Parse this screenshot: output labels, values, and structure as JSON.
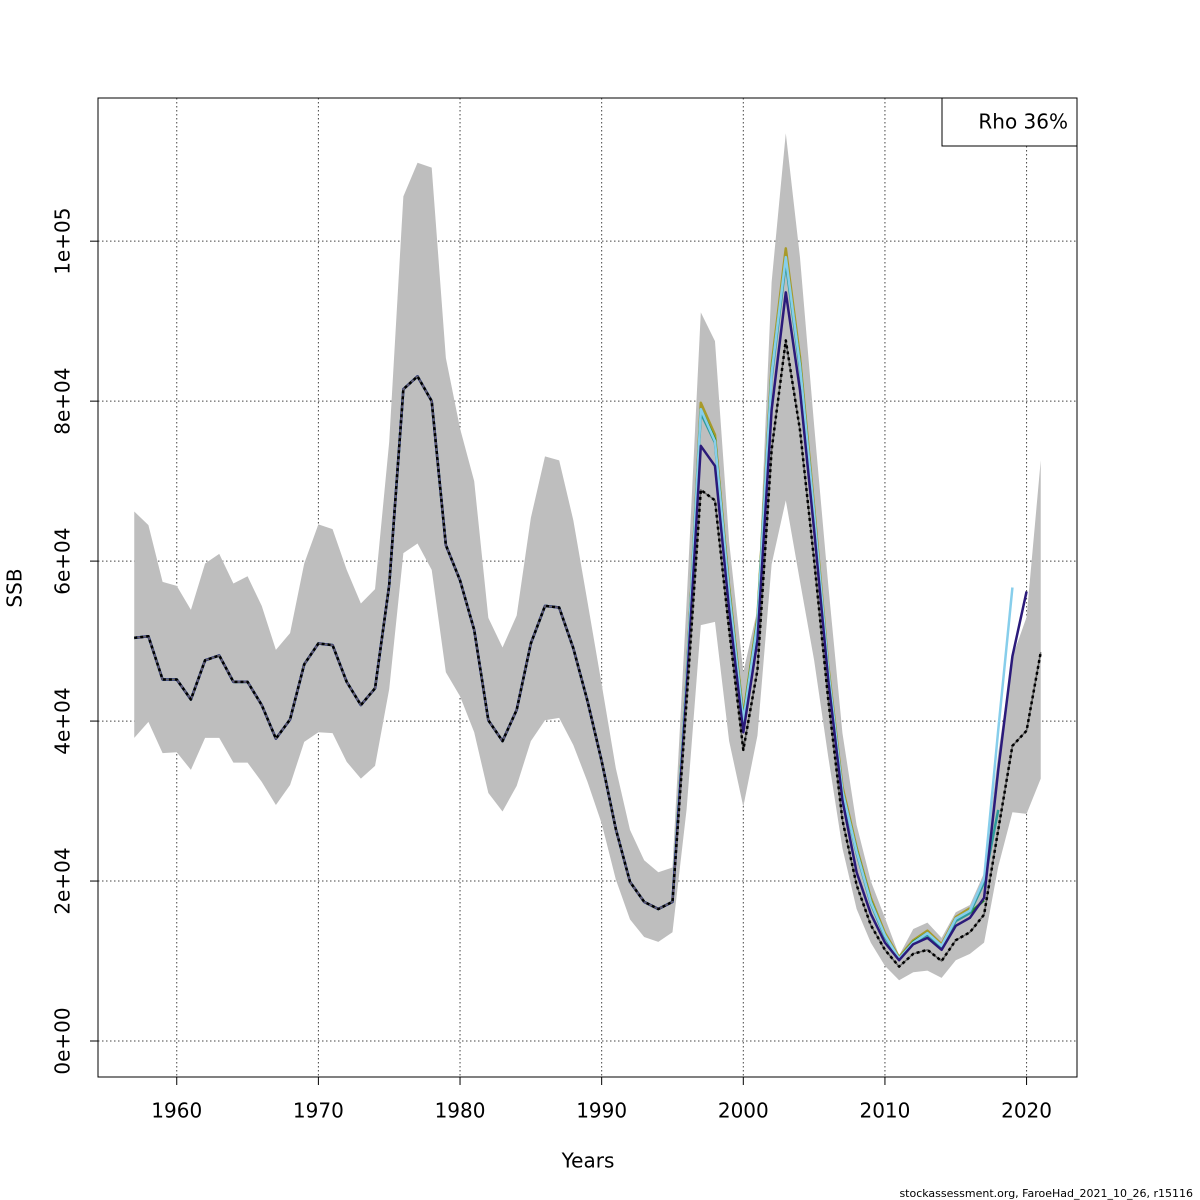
{
  "chart_data": {
    "type": "line",
    "xlabel": "Years",
    "ylabel": "SSB",
    "annotation": "Rho 36%",
    "footer": "stockassessment.org, FaroeHad_2021_10_26, r15116",
    "grid": true,
    "legend_position": "top-right",
    "xlim": [
      1954.44,
      2023.56
    ],
    "xticks": [
      1960,
      1970,
      1980,
      1990,
      2000,
      2010,
      2020
    ],
    "ylim": [
      -4500,
      117900
    ],
    "yticks": [
      {
        "value": 0,
        "label": "0e+00"
      },
      {
        "value": 20000,
        "label": "2e+04"
      },
      {
        "value": 40000,
        "label": "4e+04"
      },
      {
        "value": 60000,
        "label": "6e+04"
      },
      {
        "value": 80000,
        "label": "8e+04"
      },
      {
        "value": 100000,
        "label": "1e+05"
      }
    ],
    "x": [
      1957,
      1958,
      1959,
      1960,
      1961,
      1962,
      1963,
      1964,
      1965,
      1966,
      1967,
      1968,
      1969,
      1970,
      1971,
      1972,
      1973,
      1974,
      1975,
      1976,
      1977,
      1978,
      1979,
      1980,
      1981,
      1982,
      1983,
      1984,
      1985,
      1986,
      1987,
      1988,
      1989,
      1990,
      1991,
      1992,
      1993,
      1994,
      1995,
      1996,
      1997,
      1998,
      1999,
      2000,
      2001,
      2002,
      2003,
      2004,
      2005,
      2006,
      2007,
      2008,
      2009,
      2010,
      2011,
      2012,
      2013,
      2014,
      2015,
      2016,
      2017,
      2018,
      2019,
      2020,
      2021
    ],
    "band": {
      "color": "#bebebe",
      "upper": [
        66200,
        64500,
        57400,
        56900,
        53900,
        59700,
        60900,
        57200,
        58100,
        54400,
        48900,
        51000,
        59700,
        64600,
        64000,
        58900,
        54700,
        56500,
        74900,
        105600,
        109800,
        109200,
        85400,
        76600,
        70000,
        52900,
        49200,
        53200,
        65400,
        73100,
        72600,
        65100,
        54900,
        44600,
        34100,
        26400,
        22600,
        21100,
        21700,
        55000,
        91100,
        87500,
        62400,
        46100,
        54000,
        94900,
        113500,
        98000,
        77000,
        57000,
        38500,
        27000,
        20000,
        15400,
        10700,
        14000,
        14800,
        12900,
        16100,
        17000,
        21000,
        36000,
        48000,
        53000,
        72600
      ],
      "lower": [
        37900,
        39900,
        36000,
        36100,
        33900,
        37900,
        37900,
        34800,
        34800,
        32400,
        29500,
        32000,
        37400,
        38600,
        38500,
        34900,
        32800,
        34400,
        44000,
        61000,
        62200,
        58900,
        46100,
        43100,
        38600,
        31000,
        28700,
        31900,
        37500,
        40100,
        40400,
        37000,
        32400,
        27200,
        20200,
        15200,
        13000,
        12400,
        13600,
        29000,
        52000,
        52400,
        37500,
        29300,
        38200,
        59600,
        67600,
        57500,
        47600,
        35500,
        24100,
        16500,
        12300,
        9400,
        7600,
        8600,
        8800,
        7900,
        10100,
        10900,
        12300,
        21800,
        28600,
        28400,
        32800
      ]
    },
    "series": [
      {
        "color": "#a89a2a",
        "dash": false,
        "values": [
          50400,
          50600,
          45200,
          45200,
          42700,
          47600,
          48200,
          44900,
          44900,
          42000,
          37800,
          40200,
          47100,
          49700,
          49500,
          44900,
          42000,
          44100,
          57000,
          81500,
          83100,
          80000,
          62000,
          57600,
          51400,
          40100,
          37500,
          41400,
          49700,
          54400,
          54200,
          49100,
          42500,
          35000,
          26500,
          19900,
          17400,
          16500,
          17400,
          45500,
          79800,
          75800,
          56800,
          40700,
          53000,
          84500,
          99100,
          85500,
          66800,
          46900,
          31800,
          24200,
          17900,
          13500,
          10500,
          12600,
          13800,
          12100,
          15500,
          16600,
          null,
          null,
          null,
          null,
          null
        ]
      },
      {
        "color": "#1f8a1f",
        "dash": false,
        "values": [
          50400,
          50600,
          45200,
          45200,
          42700,
          47600,
          48200,
          44900,
          44900,
          42000,
          37800,
          40200,
          47100,
          49700,
          49500,
          44900,
          42000,
          44100,
          57000,
          81500,
          83100,
          80000,
          62000,
          57600,
          51400,
          40100,
          37500,
          41400,
          49700,
          54400,
          54200,
          49100,
          42500,
          35000,
          26500,
          19900,
          17400,
          16500,
          17400,
          45200,
          79000,
          75200,
          56200,
          40200,
          52500,
          83700,
          97500,
          84700,
          66000,
          46300,
          31200,
          23800,
          17500,
          13200,
          10300,
          12400,
          13500,
          11800,
          15200,
          16000,
          17600,
          null,
          null,
          null,
          null
        ]
      },
      {
        "color": "#2e9b9b",
        "dash": false,
        "values": [
          50400,
          50600,
          45200,
          45200,
          42700,
          47600,
          48200,
          44900,
          44900,
          42000,
          37800,
          40200,
          47100,
          49700,
          49500,
          44900,
          42000,
          44100,
          57000,
          81500,
          83100,
          80000,
          62000,
          57600,
          51400,
          40100,
          37500,
          41400,
          49700,
          54400,
          54200,
          49100,
          42500,
          35000,
          26500,
          19900,
          17400,
          16500,
          17400,
          45000,
          78500,
          74800,
          55800,
          39800,
          52000,
          83000,
          97300,
          84000,
          65600,
          46000,
          31000,
          23500,
          17200,
          13000,
          10200,
          12200,
          13300,
          11700,
          15000,
          16000,
          19800,
          28900,
          null,
          null,
          null
        ]
      },
      {
        "color": "#87ceeb",
        "dash": false,
        "values": [
          50400,
          50600,
          45200,
          45200,
          42700,
          47600,
          48200,
          44900,
          44900,
          42000,
          37800,
          40200,
          47100,
          49700,
          49500,
          44900,
          42000,
          44100,
          57000,
          81500,
          83100,
          80000,
          62000,
          57600,
          51400,
          40100,
          37500,
          41400,
          49700,
          54400,
          54200,
          49100,
          42500,
          35000,
          26500,
          19900,
          17400,
          16500,
          17400,
          45000,
          79000,
          75000,
          56000,
          40000,
          52300,
          83500,
          98000,
          84500,
          66000,
          46300,
          31200,
          23700,
          17400,
          13200,
          10300,
          12300,
          13500,
          11900,
          15300,
          16300,
          20300,
          38900,
          56700,
          null,
          null
        ]
      },
      {
        "color": "#2b1a7a",
        "dash": false,
        "values": [
          50400,
          50600,
          45200,
          45200,
          42700,
          47600,
          48200,
          44900,
          44900,
          42000,
          37800,
          40200,
          47100,
          49700,
          49500,
          44900,
          42000,
          44100,
          57000,
          81500,
          83100,
          80000,
          62000,
          57600,
          51400,
          40100,
          37500,
          41400,
          49700,
          54400,
          54200,
          49100,
          42500,
          35000,
          26500,
          19900,
          17400,
          16500,
          17400,
          43900,
          74400,
          71900,
          53900,
          38600,
          50100,
          78900,
          93600,
          81400,
          63900,
          45100,
          30100,
          21100,
          15900,
          12300,
          10100,
          12100,
          12900,
          11400,
          14400,
          15400,
          17900,
          33900,
          48100,
          56200,
          null
        ]
      },
      {
        "color": "#000000",
        "dash": true,
        "values": [
          50400,
          50600,
          45200,
          45200,
          42700,
          47600,
          48200,
          44900,
          44900,
          42000,
          37800,
          40200,
          47100,
          49700,
          49500,
          44900,
          42000,
          44100,
          57000,
          81500,
          83100,
          80000,
          62000,
          57600,
          51400,
          40100,
          37500,
          41400,
          49700,
          54400,
          54200,
          49100,
          42500,
          35000,
          26500,
          19900,
          17400,
          16500,
          17400,
          42600,
          68900,
          67600,
          51400,
          36400,
          46400,
          73900,
          87600,
          76400,
          60100,
          42600,
          27600,
          19500,
          14500,
          11400,
          9300,
          10900,
          11400,
          10000,
          12600,
          13600,
          15800,
          26400,
          36900,
          38800,
          48600
        ]
      }
    ]
  }
}
